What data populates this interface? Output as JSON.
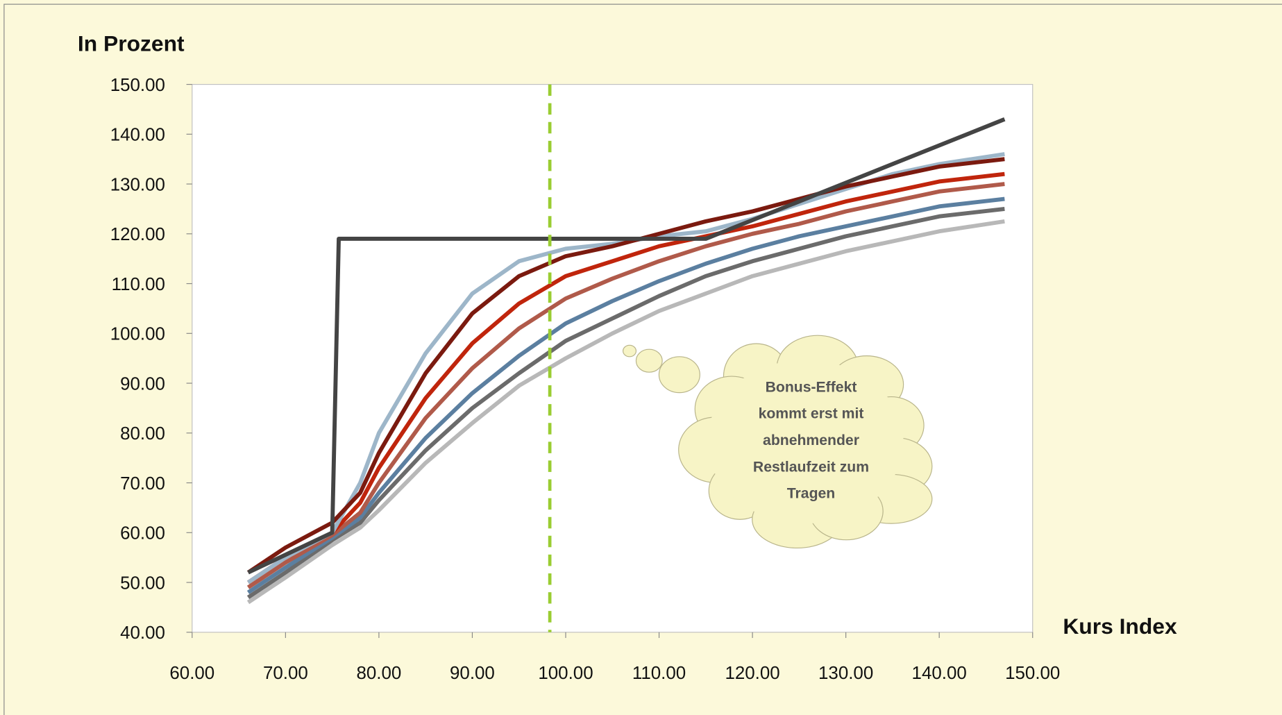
{
  "chart_data": {
    "type": "line",
    "y_label": "In Prozent",
    "x_label": "Kurs Index",
    "xlim": [
      60,
      150
    ],
    "ylim": [
      40,
      150
    ],
    "xticks": [
      {
        "value": 60,
        "label": "60.00"
      },
      {
        "value": 70,
        "label": "70.00"
      },
      {
        "value": 80,
        "label": "80.00"
      },
      {
        "value": 90,
        "label": "90.00"
      },
      {
        "value": 100,
        "label": "100.00"
      },
      {
        "value": 110,
        "label": "110.00"
      },
      {
        "value": 120,
        "label": "120.00"
      },
      {
        "value": 130,
        "label": "130.00"
      },
      {
        "value": 140,
        "label": "140.00"
      },
      {
        "value": 150,
        "label": "150.00"
      }
    ],
    "yticks": [
      {
        "value": 40,
        "label": "40.00"
      },
      {
        "value": 50,
        "label": "50.00"
      },
      {
        "value": 60,
        "label": "60.00"
      },
      {
        "value": 70,
        "label": "70.00"
      },
      {
        "value": 80,
        "label": "80.00"
      },
      {
        "value": 90,
        "label": "90.00"
      },
      {
        "value": 100,
        "label": "100.00"
      },
      {
        "value": 110,
        "label": "110.00"
      },
      {
        "value": 120,
        "label": "120.00"
      },
      {
        "value": 130,
        "label": "130.00"
      },
      {
        "value": 140,
        "label": "140.00"
      },
      {
        "value": 150,
        "label": "150.00"
      }
    ],
    "x": [
      66,
      70,
      75,
      78,
      80,
      85,
      90,
      95,
      100,
      105,
      110,
      115,
      120,
      125,
      130,
      135,
      140,
      147
    ],
    "series": [
      {
        "color": "#b8b8b8",
        "values": [
          46,
          51,
          57.5,
          61,
          64.5,
          74,
          82,
          89.5,
          95,
          100,
          104.5,
          108,
          111.5,
          114,
          116.5,
          118.5,
          120.5,
          122.5
        ]
      },
      {
        "color": "#6b6b6b",
        "values": [
          47,
          52,
          58.5,
          62,
          66.5,
          76.5,
          85,
          92,
          98.5,
          103,
          107.5,
          111.5,
          114.5,
          117,
          119.5,
          121.5,
          123.5,
          125
        ]
      },
      {
        "color": "#5b7fa0",
        "values": [
          48,
          53,
          59,
          63,
          68,
          79,
          88,
          95.5,
          102,
          106.5,
          110.5,
          114,
          117,
          119.5,
          121.5,
          123.5,
          125.5,
          127
        ]
      },
      {
        "color": "#b05a4a",
        "values": [
          49,
          54,
          59.5,
          64,
          70,
          83,
          93,
          101,
          107,
          111,
          114.5,
          117.5,
          120,
          122,
          124.5,
          126.5,
          128.5,
          130
        ]
      },
      {
        "color": "#c0250c",
        "values": [
          50,
          55,
          60,
          66,
          73,
          87,
          98,
          106,
          111.5,
          114.5,
          117.5,
          119.5,
          121.5,
          124,
          126.5,
          128.5,
          130.5,
          132
        ]
      },
      {
        "color": "#9db6c9",
        "values": [
          50,
          55,
          60,
          70,
          80,
          96,
          108,
          114.5,
          117,
          118,
          119.5,
          120.5,
          123,
          126,
          129,
          132,
          134,
          136
        ]
      },
      {
        "color": "#7b1a0f",
        "values": [
          52,
          57,
          62,
          68,
          76,
          92,
          104,
          111.5,
          115.5,
          117.5,
          120,
          122.5,
          124.5,
          127,
          129.5,
          131.5,
          133.5,
          135
        ]
      },
      {
        "color": "#444444",
        "x": [
          66,
          75,
          75.7,
          115,
          147
        ],
        "values": [
          52,
          60,
          119,
          119,
          143
        ]
      }
    ],
    "vline": {
      "value": 98.3,
      "color": "#9acd32"
    },
    "annotation": {
      "lines": [
        "Bonus-Effekt",
        "kommt erst mit",
        "abnehmender",
        "Restlaufzeit zum",
        "Tragen"
      ]
    }
  }
}
